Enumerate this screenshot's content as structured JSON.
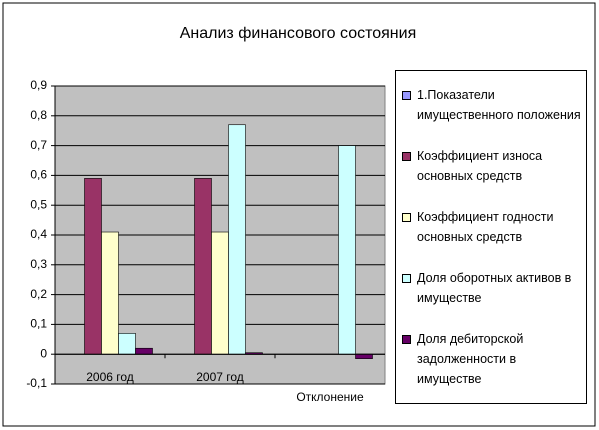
{
  "chart_data": {
    "type": "bar",
    "title": "Анализ финансового состояния",
    "categories": [
      "2006 год",
      "2007 год",
      "Отклонение"
    ],
    "series": [
      {
        "name": "1.Показатели имущественного положения",
        "color": "#9999ff",
        "values": [
          0,
          0,
          0
        ]
      },
      {
        "name": "Коэффициент износа основных средств",
        "color": "#993366",
        "values": [
          0.59,
          0.59,
          0
        ]
      },
      {
        "name": "Коэффициент годности основных средств",
        "color": "#ffffcc",
        "values": [
          0.41,
          0.41,
          0
        ]
      },
      {
        "name": "Доля оборотных активов в имуществе",
        "color": "#ccffff",
        "values": [
          0.07,
          0.77,
          0.7
        ]
      },
      {
        "name": "Доля дебиторской задолженности в имуществе",
        "color": "#660066",
        "values": [
          0.02,
          0.005,
          -0.015
        ]
      }
    ],
    "ylim": [
      -0.1,
      0.9
    ],
    "yticks": [
      {
        "value": -0.1,
        "label": "-0,1"
      },
      0,
      {
        "value": 0.1,
        "label": "0,1"
      },
      {
        "value": 0.2,
        "label": "0,2"
      },
      {
        "value": 0.3,
        "label": "0,3"
      },
      {
        "value": 0.4,
        "label": "0,4"
      },
      {
        "value": 0.5,
        "label": "0,5"
      },
      {
        "value": 0.6,
        "label": "0,6"
      },
      {
        "value": 0.7,
        "label": "0,7"
      },
      {
        "value": 0.8,
        "label": "0,8"
      },
      {
        "value": 0.9,
        "label": "0,9"
      }
    ],
    "grid": true,
    "legend": "right",
    "plot_background": "#c0c0c0"
  }
}
